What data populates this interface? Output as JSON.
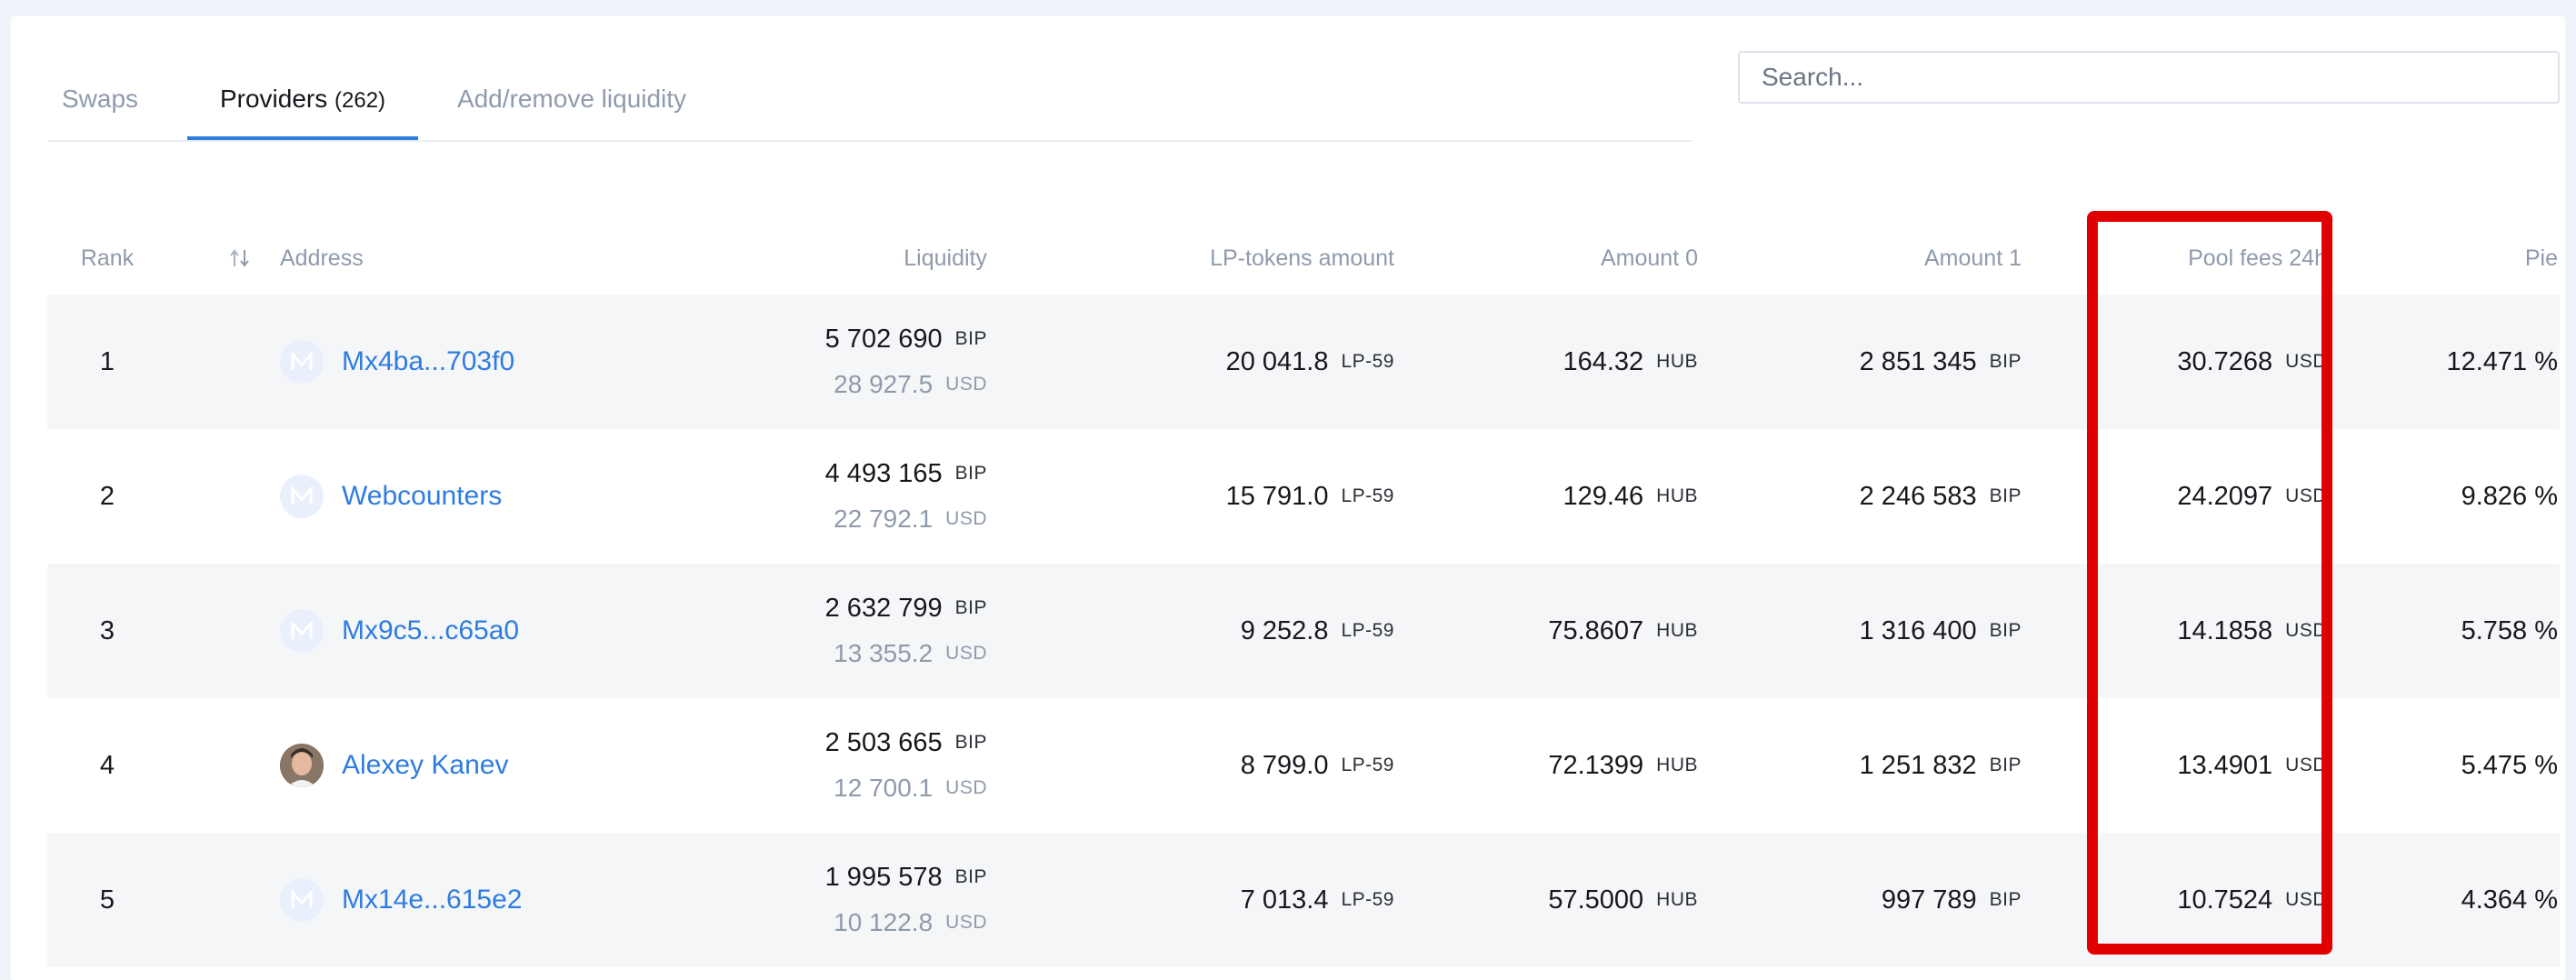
{
  "tabs": [
    {
      "label": "Swaps",
      "count": ""
    },
    {
      "label": "Providers",
      "count": "(262)"
    },
    {
      "label": "Add/remove liquidity",
      "count": ""
    }
  ],
  "search": {
    "placeholder": "Search..."
  },
  "columns": {
    "rank": "Rank",
    "address": "Address",
    "liquidity": "Liquidity",
    "lp_tokens": "LP-tokens amount",
    "amount0": "Amount 0",
    "amount1": "Amount 1",
    "pool_fees": "Pool fees 24h",
    "pie": "Pie"
  },
  "icons": {
    "sort": "sort-arrows-icon",
    "avatar": "minter-logo-icon"
  },
  "colors": {
    "accent": "#2f7ce0",
    "highlight": "#e00000"
  },
  "rows": [
    {
      "rank": "1",
      "address": "Mx4ba...703f0",
      "avatar": "logo",
      "liq_bip": "5 702 690",
      "liq_bip_unit": "BIP",
      "liq_usd": "28 927.5",
      "liq_usd_unit": "USD",
      "lp": "20 041.8",
      "lp_unit": "LP-59",
      "a0": "164.32",
      "a0_unit": "HUB",
      "a1": "2 851 345",
      "a1_unit": "BIP",
      "fee": "30.7268",
      "fee_unit": "USD",
      "pie": "12.471 %"
    },
    {
      "rank": "2",
      "address": "Webcounters",
      "avatar": "logo",
      "liq_bip": "4 493 165",
      "liq_bip_unit": "BIP",
      "liq_usd": "22 792.1",
      "liq_usd_unit": "USD",
      "lp": "15 791.0",
      "lp_unit": "LP-59",
      "a0": "129.46",
      "a0_unit": "HUB",
      "a1": "2 246 583",
      "a1_unit": "BIP",
      "fee": "24.2097",
      "fee_unit": "USD",
      "pie": "9.826 %"
    },
    {
      "rank": "3",
      "address": "Mx9c5...c65a0",
      "avatar": "logo",
      "liq_bip": "2 632 799",
      "liq_bip_unit": "BIP",
      "liq_usd": "13 355.2",
      "liq_usd_unit": "USD",
      "lp": "9 252.8",
      "lp_unit": "LP-59",
      "a0": "75.8607",
      "a0_unit": "HUB",
      "a1": "1 316 400",
      "a1_unit": "BIP",
      "fee": "14.1858",
      "fee_unit": "USD",
      "pie": "5.758 %"
    },
    {
      "rank": "4",
      "address": "Alexey Kanev",
      "avatar": "photo",
      "liq_bip": "2 503 665",
      "liq_bip_unit": "BIP",
      "liq_usd": "12 700.1",
      "liq_usd_unit": "USD",
      "lp": "8 799.0",
      "lp_unit": "LP-59",
      "a0": "72.1399",
      "a0_unit": "HUB",
      "a1": "1 251 832",
      "a1_unit": "BIP",
      "fee": "13.4901",
      "fee_unit": "USD",
      "pie": "5.475 %"
    },
    {
      "rank": "5",
      "address": "Mx14e...615e2",
      "avatar": "logo",
      "liq_bip": "1 995 578",
      "liq_bip_unit": "BIP",
      "liq_usd": "10 122.8",
      "liq_usd_unit": "USD",
      "lp": "7 013.4",
      "lp_unit": "LP-59",
      "a0": "57.5000",
      "a0_unit": "HUB",
      "a1": "997 789",
      "a1_unit": "BIP",
      "fee": "10.7524",
      "fee_unit": "USD",
      "pie": "4.364 %"
    }
  ]
}
